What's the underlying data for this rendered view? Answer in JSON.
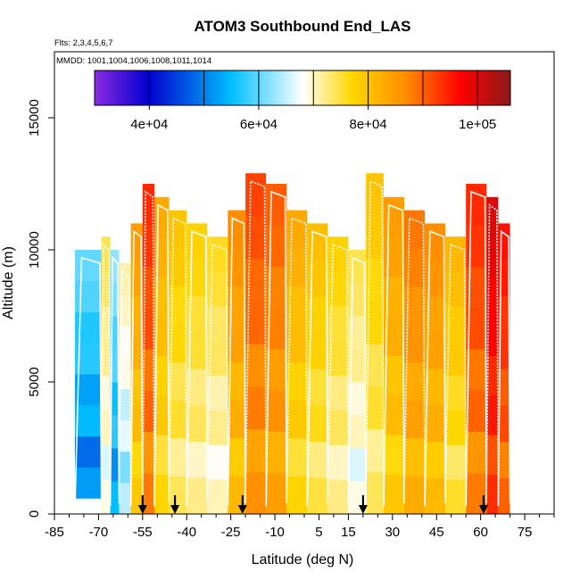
{
  "chart_data": {
    "type": "heatmap",
    "title": "ATOM3 Southbound End_LAS",
    "subtitle": "Flts: 2,3,4,5,6,7",
    "annotation": "MMDD: 1001,1004,1006,1008,1011,1014",
    "xlabel": "Latitude (deg N)",
    "ylabel": "Altitude (m)",
    "xlim": [
      -85,
      85
    ],
    "ylim": [
      0,
      17500
    ],
    "x_ticks": [
      -85,
      -70,
      -55,
      -40,
      -25,
      -10,
      5,
      15,
      30,
      45,
      60,
      75
    ],
    "x_tick_labels": [
      "-85",
      "-70",
      "-55",
      "-40",
      "-25",
      "-10",
      "5",
      "15",
      "30",
      "45",
      "60",
      "75"
    ],
    "y_ticks": [
      0,
      5000,
      10000,
      15000
    ],
    "y_tick_labels": [
      "0",
      "5000",
      "10000",
      "15000"
    ],
    "grid": false,
    "colorbar": {
      "position": "top",
      "range": [
        30000,
        106000
      ],
      "tick_values": [
        40000,
        60000,
        80000,
        100000
      ],
      "tick_labels": [
        "4e+04",
        "6e+04",
        "8e+04",
        "1e+05"
      ],
      "colors": [
        "#8a2be2",
        "#0000cd",
        "#00bfff",
        "#ffffff",
        "#ffd700",
        "#ff8c00",
        "#ff0000",
        "#8b1a1a"
      ]
    },
    "profile_latitudes": [
      -55,
      -44,
      -21,
      20,
      61
    ],
    "segments": [
      {
        "x0": -78,
        "x1": -69,
        "y0": 600,
        "y1": 10000,
        "value": 56000
      },
      {
        "x0": -69,
        "x1": -66,
        "y0": 0,
        "y1": 10500,
        "value": 70000
      },
      {
        "x0": -66,
        "x1": -63,
        "y0": 0,
        "y1": 10000,
        "value": 58000
      },
      {
        "x0": -63,
        "x1": -59,
        "y0": 0,
        "y1": 9500,
        "value": 66000
      },
      {
        "x0": -59,
        "x1": -55,
        "y0": 0,
        "y1": 11000,
        "value": 82000
      },
      {
        "x0": -55,
        "x1": -51,
        "y0": 0,
        "y1": 12500,
        "value": 92000
      },
      {
        "x0": -51,
        "x1": -46,
        "y0": 0,
        "y1": 12000,
        "value": 80000
      },
      {
        "x0": -46,
        "x1": -40,
        "y0": 0,
        "y1": 11500,
        "value": 76000
      },
      {
        "x0": -40,
        "x1": -33,
        "y0": 0,
        "y1": 11000,
        "value": 74000
      },
      {
        "x0": -33,
        "x1": -26,
        "y0": 0,
        "y1": 10500,
        "value": 72000
      },
      {
        "x0": -26,
        "x1": -20,
        "y0": 0,
        "y1": 11500,
        "value": 84000
      },
      {
        "x0": -20,
        "x1": -13,
        "y0": 0,
        "y1": 12900,
        "value": 90000
      },
      {
        "x0": -13,
        "x1": -6,
        "y0": 0,
        "y1": 12500,
        "value": 88000
      },
      {
        "x0": -6,
        "x1": 1,
        "y0": 0,
        "y1": 11500,
        "value": 80000
      },
      {
        "x0": 1,
        "x1": 8,
        "y0": 0,
        "y1": 11000,
        "value": 77000
      },
      {
        "x0": 8,
        "x1": 15,
        "y0": 0,
        "y1": 10500,
        "value": 74000
      },
      {
        "x0": 15,
        "x1": 21,
        "y0": 0,
        "y1": 10000,
        "value": 70000
      },
      {
        "x0": 21,
        "x1": 27,
        "y0": 0,
        "y1": 12900,
        "value": 76000
      },
      {
        "x0": 27,
        "x1": 34,
        "y0": 0,
        "y1": 12000,
        "value": 82000
      },
      {
        "x0": 34,
        "x1": 41,
        "y0": 0,
        "y1": 11500,
        "value": 86000
      },
      {
        "x0": 41,
        "x1": 48,
        "y0": 0,
        "y1": 11000,
        "value": 84000
      },
      {
        "x0": 48,
        "x1": 55,
        "y0": 0,
        "y1": 10500,
        "value": 78000
      },
      {
        "x0": 55,
        "x1": 62,
        "y0": 0,
        "y1": 12500,
        "value": 92000
      },
      {
        "x0": 62,
        "x1": 66,
        "y0": 0,
        "y1": 12000,
        "value": 98000
      },
      {
        "x0": 66,
        "x1": 70,
        "y0": 0,
        "y1": 11000,
        "value": 94000
      }
    ]
  }
}
